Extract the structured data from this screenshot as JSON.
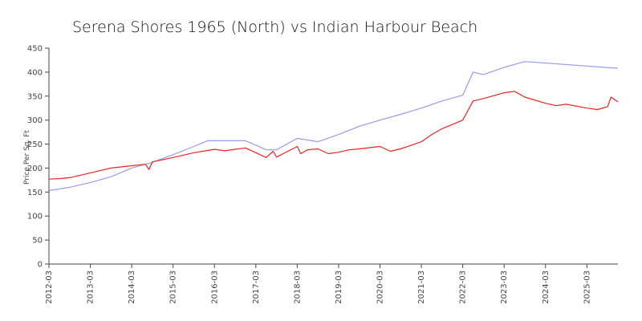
{
  "chart_data": {
    "type": "line",
    "title": "Serena Shores 1965 (North) vs Indian Harbour Beach",
    "xlabel": "",
    "ylabel": "Price Per Sq. Ft",
    "ylim": [
      0,
      450
    ],
    "yticks": [
      0,
      50,
      100,
      150,
      200,
      250,
      300,
      350,
      400,
      450
    ],
    "xlim": [
      "2012-03",
      "2025-12"
    ],
    "xticks": [
      "2012-03",
      "2013-03",
      "2014-03",
      "2015-03",
      "2016-03",
      "2017-03",
      "2018-03",
      "2019-03",
      "2020-03",
      "2021-03",
      "2022-03",
      "2023-03",
      "2024-03",
      "2025-03"
    ],
    "grid": false,
    "legend": "none",
    "series": [
      {
        "color": "#9999ee",
        "points": [
          [
            "2012-03",
            153
          ],
          [
            "2012-09",
            160
          ],
          [
            "2013-03",
            170
          ],
          [
            "2013-09",
            182
          ],
          [
            "2014-03",
            200
          ],
          [
            "2014-09",
            212
          ],
          [
            "2015-03",
            228
          ],
          [
            "2015-09",
            245
          ],
          [
            "2016-01",
            257
          ],
          [
            "2016-12",
            257
          ],
          [
            "2017-03",
            248
          ],
          [
            "2017-06",
            238
          ],
          [
            "2017-09",
            238
          ],
          [
            "2018-03",
            262
          ],
          [
            "2018-09",
            255
          ],
          [
            "2019-03",
            270
          ],
          [
            "2019-09",
            287
          ],
          [
            "2020-03",
            300
          ],
          [
            "2020-09",
            312
          ],
          [
            "2021-03",
            325
          ],
          [
            "2021-09",
            340
          ],
          [
            "2022-03",
            352
          ],
          [
            "2022-06",
            400
          ],
          [
            "2022-09",
            395
          ],
          [
            "2023-03",
            410
          ],
          [
            "2023-09",
            422
          ],
          [
            "2025-12",
            408
          ]
        ]
      },
      {
        "color": "#ee2222",
        "points": [
          [
            "2012-03",
            177
          ],
          [
            "2012-06",
            178
          ],
          [
            "2012-09",
            180
          ],
          [
            "2013-03",
            190
          ],
          [
            "2013-09",
            200
          ],
          [
            "2014-03",
            205
          ],
          [
            "2014-07",
            208
          ],
          [
            "2014-08",
            197
          ],
          [
            "2014-09",
            213
          ],
          [
            "2015-03",
            222
          ],
          [
            "2015-09",
            232
          ],
          [
            "2016-03",
            239
          ],
          [
            "2016-06",
            236
          ],
          [
            "2016-12",
            242
          ],
          [
            "2017-03",
            232
          ],
          [
            "2017-06",
            222
          ],
          [
            "2017-08",
            235
          ],
          [
            "2017-09",
            223
          ],
          [
            "2018-03",
            245
          ],
          [
            "2018-04",
            230
          ],
          [
            "2018-06",
            238
          ],
          [
            "2018-09",
            240
          ],
          [
            "2018-12",
            230
          ],
          [
            "2019-03",
            233
          ],
          [
            "2019-06",
            238
          ],
          [
            "2019-09",
            240
          ],
          [
            "2020-03",
            245
          ],
          [
            "2020-06",
            235
          ],
          [
            "2020-09",
            240
          ],
          [
            "2021-03",
            255
          ],
          [
            "2021-06",
            270
          ],
          [
            "2021-09",
            282
          ],
          [
            "2022-03",
            300
          ],
          [
            "2022-06",
            340
          ],
          [
            "2022-09",
            345
          ],
          [
            "2023-03",
            357
          ],
          [
            "2023-06",
            360
          ],
          [
            "2023-09",
            348
          ],
          [
            "2024-03",
            335
          ],
          [
            "2024-06",
            330
          ],
          [
            "2024-09",
            333
          ],
          [
            "2025-03",
            325
          ],
          [
            "2025-06",
            322
          ],
          [
            "2025-09",
            328
          ],
          [
            "2025-10",
            348
          ],
          [
            "2025-12",
            338
          ]
        ]
      }
    ]
  }
}
